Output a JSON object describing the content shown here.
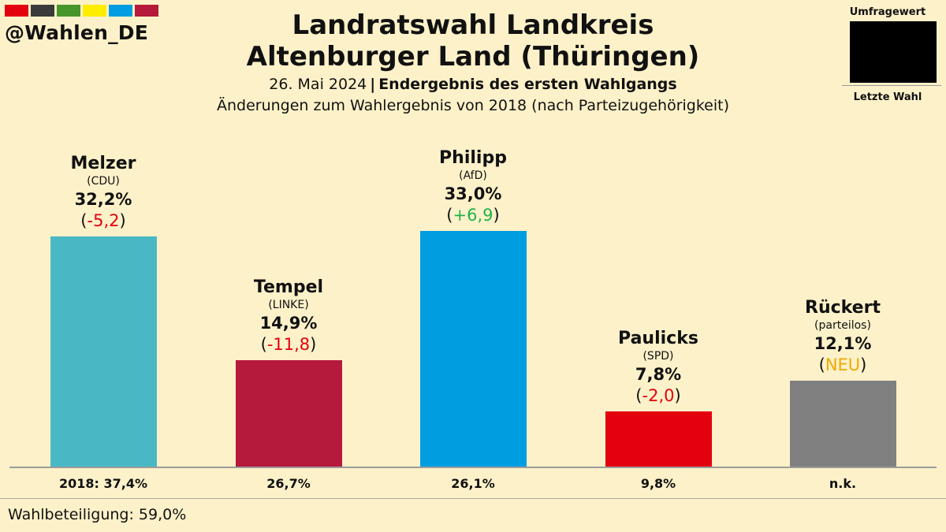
{
  "brand": {
    "handle": "@Wahlen_DE",
    "swatches": [
      "#e3000f",
      "#3a3a3a",
      "#46962b",
      "#ffed00",
      "#009ee0",
      "#b5193b"
    ]
  },
  "title_line1": "Landratswahl Landkreis",
  "title_line2": "Altenburger Land (Thüringen)",
  "date": "26. Mai 2024",
  "separator": "|",
  "stage": "Endergebnis des ersten Wahlgangs",
  "subtitle": "Änderungen zum Wahlergebnis von 2018 (nach Parteizugehörigkeit)",
  "legend": {
    "top_label": "Umfragewert",
    "bottom_label": "Letzte Wahl",
    "swatch_color": "#000000"
  },
  "colors": {
    "negative": "#e3000f",
    "positive": "#22b14c",
    "neutral": "#f0a800"
  },
  "chart_data": {
    "type": "bar",
    "categories": [
      "Melzer",
      "Tempel",
      "Philipp",
      "Paulicks",
      "Rückert"
    ],
    "ylim": [
      0,
      40
    ],
    "grid": false,
    "series": [
      {
        "values": [
          32.2,
          14.9,
          33.0,
          7.8,
          12.1
        ]
      }
    ],
    "bars": [
      {
        "name": "Melzer",
        "party": "(CDU)",
        "value": 32.2,
        "value_label": "32,2%",
        "change": "-5,2",
        "change_kind": "negative",
        "previous_label": "2018: 37,4%",
        "color": "#4ab8c4"
      },
      {
        "name": "Tempel",
        "party": "(LINKE)",
        "value": 14.9,
        "value_label": "14,9%",
        "change": "-11,8",
        "change_kind": "negative",
        "previous_label": "26,7%",
        "color": "#b5193b"
      },
      {
        "name": "Philipp",
        "party": "(AfD)",
        "value": 33.0,
        "value_label": "33,0%",
        "change": "+6,9",
        "change_kind": "positive",
        "previous_label": "26,1%",
        "color": "#009ee0"
      },
      {
        "name": "Paulicks",
        "party": "(SPD)",
        "value": 7.8,
        "value_label": "7,8%",
        "change": "-2,0",
        "change_kind": "negative",
        "previous_label": "9,8%",
        "color": "#e3000f"
      },
      {
        "name": "Rückert",
        "party": "(parteilos)",
        "value": 12.1,
        "value_label": "12,1%",
        "change": "NEU",
        "change_kind": "neutral",
        "previous_label": "n.k.",
        "color": "#808080"
      }
    ]
  },
  "turnout": "Wahlbeteiligung: 59,0%"
}
